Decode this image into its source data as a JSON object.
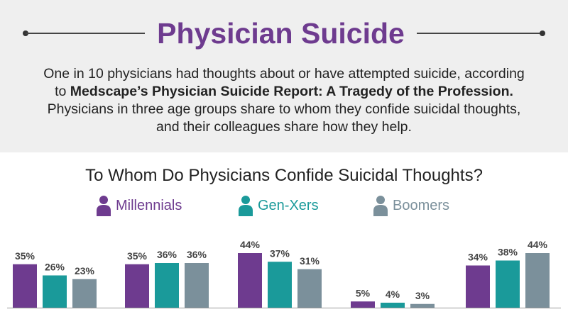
{
  "header": {
    "title": "Physician Suicide",
    "intro_line1": "One in 10 physicians had thoughts about or have attempted suicide, according",
    "intro_line2_prefix": "to",
    "intro_line2_bold": "Medscape’s Physician Suicide Report: A Tragedy of the Profession.",
    "intro_line3": "Physicians in three age groups share to whom they confide suicidal thoughts,",
    "intro_line4": "and their colleagues share how they help."
  },
  "colors": {
    "millennials": "#6e3b8f",
    "genx": "#1a9a9a",
    "boomers": "#7b909b",
    "title": "#6e3b8f"
  },
  "legend": [
    {
      "label": "Millennials",
      "icon": "person-icon",
      "color": "#6e3b8f"
    },
    {
      "label": "Gen-Xers",
      "icon": "person-icon",
      "color": "#1a9a9a"
    },
    {
      "label": "Boomers",
      "icon": "person-icon",
      "color": "#7b909b"
    }
  ],
  "chart_data": {
    "type": "bar",
    "title": "To Whom Do Physicians Confide Suicidal Thoughts?",
    "categories": [
      "",
      "",
      "",
      "",
      ""
    ],
    "series": [
      {
        "name": "Millennials",
        "values": [
          35,
          35,
          44,
          5,
          34
        ],
        "labels": [
          "35%",
          "35%",
          "44%",
          "5%",
          "34%"
        ]
      },
      {
        "name": "Gen-Xers",
        "values": [
          26,
          36,
          37,
          4,
          38
        ],
        "labels": [
          "26%",
          "36%",
          "37%",
          "4%",
          "38%"
        ]
      },
      {
        "name": "Boomers",
        "values": [
          23,
          36,
          31,
          3,
          44
        ],
        "labels": [
          "23%",
          "36%",
          "31%",
          "3%",
          "44%"
        ]
      }
    ],
    "ylim": [
      0,
      50
    ],
    "grid": false,
    "legend_placement": "top-center"
  }
}
